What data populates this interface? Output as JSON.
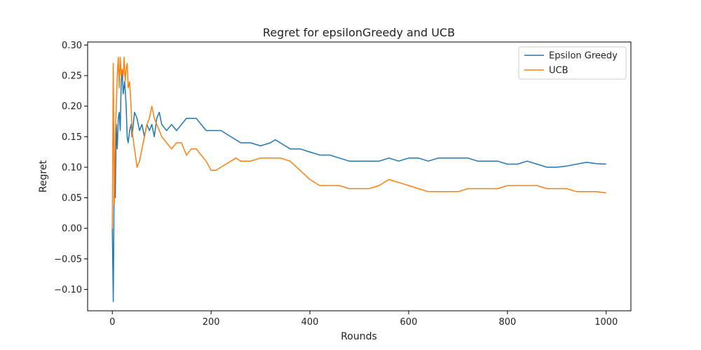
{
  "chart_data": {
    "type": "line",
    "title": "Regret for epsilonGreedy and UCB",
    "xlabel": "Rounds",
    "ylabel": "Regret",
    "xlim": [
      -50,
      1050
    ],
    "ylim": [
      -0.135,
      0.305
    ],
    "xticks": [
      0,
      200,
      400,
      600,
      800,
      1000
    ],
    "xtick_labels": [
      "0",
      "200",
      "400",
      "600",
      "800",
      "1000"
    ],
    "yticks": [
      -0.1,
      -0.05,
      0.0,
      0.05,
      0.1,
      0.15,
      0.2,
      0.25,
      0.3
    ],
    "ytick_labels": [
      "−0.10",
      "−0.05",
      "0.00",
      "0.05",
      "0.10",
      "0.15",
      "0.20",
      "0.25",
      "0.30"
    ],
    "grid": false,
    "legend_position": "top-right",
    "series": [
      {
        "name": "Epsilon Greedy",
        "color": "#1f77b4",
        "x": [
          0,
          2,
          4,
          6,
          8,
          10,
          12,
          14,
          16,
          18,
          20,
          22,
          25,
          28,
          30,
          32,
          35,
          38,
          40,
          45,
          50,
          55,
          60,
          65,
          70,
          75,
          80,
          85,
          90,
          95,
          100,
          110,
          120,
          130,
          140,
          150,
          160,
          170,
          180,
          190,
          200,
          220,
          240,
          260,
          280,
          300,
          320,
          330,
          340,
          360,
          380,
          400,
          420,
          440,
          460,
          480,
          500,
          520,
          540,
          560,
          580,
          600,
          620,
          640,
          660,
          680,
          700,
          720,
          740,
          760,
          780,
          800,
          820,
          840,
          860,
          880,
          900,
          920,
          940,
          960,
          980,
          1000
        ],
        "y": [
          0.0,
          -0.12,
          0.1,
          0.05,
          0.17,
          0.13,
          0.18,
          0.19,
          0.16,
          0.24,
          0.26,
          0.22,
          0.24,
          0.2,
          0.15,
          0.14,
          0.16,
          0.17,
          0.15,
          0.19,
          0.18,
          0.16,
          0.17,
          0.15,
          0.17,
          0.16,
          0.17,
          0.15,
          0.18,
          0.19,
          0.17,
          0.16,
          0.17,
          0.16,
          0.17,
          0.18,
          0.18,
          0.18,
          0.17,
          0.16,
          0.16,
          0.16,
          0.15,
          0.14,
          0.14,
          0.135,
          0.14,
          0.145,
          0.14,
          0.13,
          0.13,
          0.125,
          0.12,
          0.12,
          0.115,
          0.11,
          0.11,
          0.11,
          0.11,
          0.115,
          0.11,
          0.115,
          0.115,
          0.11,
          0.115,
          0.115,
          0.115,
          0.115,
          0.11,
          0.11,
          0.11,
          0.105,
          0.105,
          0.11,
          0.105,
          0.1,
          0.1,
          0.102,
          0.105,
          0.108,
          0.106,
          0.105
        ]
      },
      {
        "name": "UCB",
        "color": "#ff7f0e",
        "x": [
          0,
          2,
          4,
          6,
          8,
          10,
          12,
          14,
          16,
          18,
          20,
          22,
          24,
          26,
          28,
          30,
          32,
          35,
          38,
          40,
          45,
          50,
          55,
          60,
          65,
          70,
          75,
          80,
          85,
          90,
          95,
          100,
          110,
          120,
          130,
          140,
          150,
          160,
          170,
          180,
          190,
          200,
          210,
          220,
          230,
          240,
          250,
          260,
          280,
          300,
          320,
          340,
          360,
          380,
          400,
          420,
          440,
          460,
          480,
          500,
          520,
          540,
          560,
          580,
          600,
          620,
          640,
          660,
          680,
          700,
          720,
          740,
          760,
          780,
          800,
          820,
          840,
          860,
          880,
          900,
          920,
          940,
          960,
          980,
          1000
        ],
        "y": [
          0.0,
          0.27,
          0.04,
          0.15,
          0.2,
          0.25,
          0.28,
          0.23,
          0.28,
          0.25,
          0.26,
          0.25,
          0.28,
          0.24,
          0.26,
          0.27,
          0.23,
          0.24,
          0.2,
          0.16,
          0.13,
          0.1,
          0.11,
          0.13,
          0.15,
          0.17,
          0.18,
          0.2,
          0.18,
          0.17,
          0.16,
          0.15,
          0.14,
          0.13,
          0.14,
          0.14,
          0.12,
          0.13,
          0.13,
          0.12,
          0.11,
          0.095,
          0.095,
          0.1,
          0.105,
          0.11,
          0.115,
          0.11,
          0.11,
          0.115,
          0.115,
          0.115,
          0.11,
          0.095,
          0.08,
          0.07,
          0.07,
          0.07,
          0.065,
          0.065,
          0.065,
          0.07,
          0.08,
          0.075,
          0.07,
          0.065,
          0.06,
          0.06,
          0.06,
          0.06,
          0.065,
          0.065,
          0.065,
          0.065,
          0.07,
          0.07,
          0.07,
          0.07,
          0.065,
          0.065,
          0.065,
          0.06,
          0.06,
          0.06,
          0.058
        ]
      }
    ]
  }
}
